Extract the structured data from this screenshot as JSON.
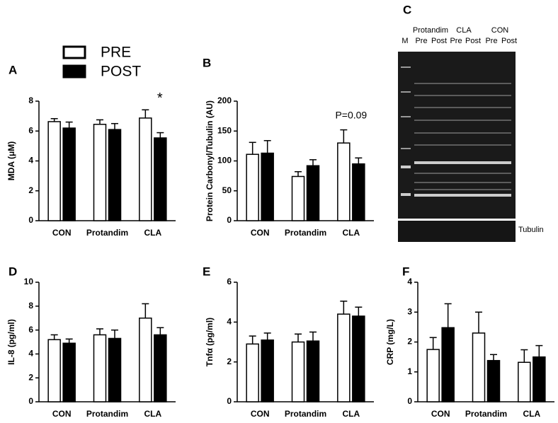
{
  "chart_data": [
    {
      "type": "bar",
      "panel": "A",
      "ylabel": "MDA (μM)",
      "categories": [
        "CON",
        "Protandim",
        "CLA"
      ],
      "ylim": [
        0,
        8
      ],
      "yticks": [
        0,
        2,
        4,
        6,
        8
      ],
      "annotation": "*",
      "legend": "upper-left",
      "series": [
        {
          "name": "PRE",
          "color": "#ffffff",
          "values": [
            6.63,
            6.45,
            6.87
          ],
          "errors": [
            0.2,
            0.3,
            0.55
          ]
        },
        {
          "name": "POST",
          "color": "#000000",
          "values": [
            6.2,
            6.1,
            5.54
          ],
          "errors": [
            0.4,
            0.4,
            0.35
          ]
        }
      ]
    },
    {
      "type": "bar",
      "panel": "B",
      "ylabel": "Protein Carbonyl/Tubulin (AU)",
      "categories": [
        "CON",
        "Protandim",
        "CLA"
      ],
      "ylim": [
        0,
        200
      ],
      "yticks": [
        0,
        50,
        100,
        150,
        200
      ],
      "annotation": "P=0.09",
      "series": [
        {
          "color": "#ffffff",
          "values": [
            111,
            74,
            130
          ],
          "errors": [
            20,
            8,
            22
          ]
        },
        {
          "color": "#000000",
          "values": [
            113,
            92,
            95
          ],
          "errors": [
            21,
            10,
            10
          ]
        }
      ]
    },
    {
      "type": "bar",
      "panel": "D",
      "ylabel": "IL-8 (pg/ml)",
      "categories": [
        "CON",
        "Protandim",
        "CLA"
      ],
      "ylim": [
        0,
        10
      ],
      "yticks": [
        0,
        2,
        4,
        6,
        8,
        10
      ],
      "series": [
        {
          "color": "#ffffff",
          "values": [
            5.2,
            5.6,
            7.0
          ],
          "errors": [
            0.4,
            0.5,
            1.2
          ]
        },
        {
          "color": "#000000",
          "values": [
            4.9,
            5.3,
            5.6
          ],
          "errors": [
            0.35,
            0.7,
            0.6
          ]
        }
      ]
    },
    {
      "type": "bar",
      "panel": "E",
      "ylabel": "Tnfα (pg/ml)",
      "categories": [
        "CON",
        "Protandim",
        "CLA"
      ],
      "ylim": [
        0,
        6
      ],
      "yticks": [
        0,
        2,
        4,
        6
      ],
      "series": [
        {
          "color": "#ffffff",
          "values": [
            2.9,
            3.0,
            4.4
          ],
          "errors": [
            0.4,
            0.4,
            0.65
          ]
        },
        {
          "color": "#000000",
          "values": [
            3.1,
            3.05,
            4.3
          ],
          "errors": [
            0.35,
            0.45,
            0.45
          ]
        }
      ]
    },
    {
      "type": "bar",
      "panel": "F",
      "ylabel": "CRP (mg/L)",
      "categories": [
        "CON",
        "Protandim",
        "CLA"
      ],
      "ylim": [
        0,
        4
      ],
      "yticks": [
        0,
        1,
        2,
        3,
        4
      ],
      "series": [
        {
          "color": "#ffffff",
          "values": [
            1.75,
            2.3,
            1.32
          ],
          "errors": [
            0.4,
            0.7,
            0.42
          ]
        },
        {
          "color": "#000000",
          "values": [
            2.48,
            1.38,
            1.5
          ],
          "errors": [
            0.8,
            0.2,
            0.38
          ]
        }
      ]
    }
  ],
  "gel": {
    "panel": "C",
    "marker": "M",
    "groups": [
      "Protandim",
      "CLA",
      "CON"
    ],
    "lanes": [
      "Pre",
      "Post",
      "Pre",
      "Post",
      "Pre",
      "Post"
    ],
    "strip": "Tubulin"
  }
}
